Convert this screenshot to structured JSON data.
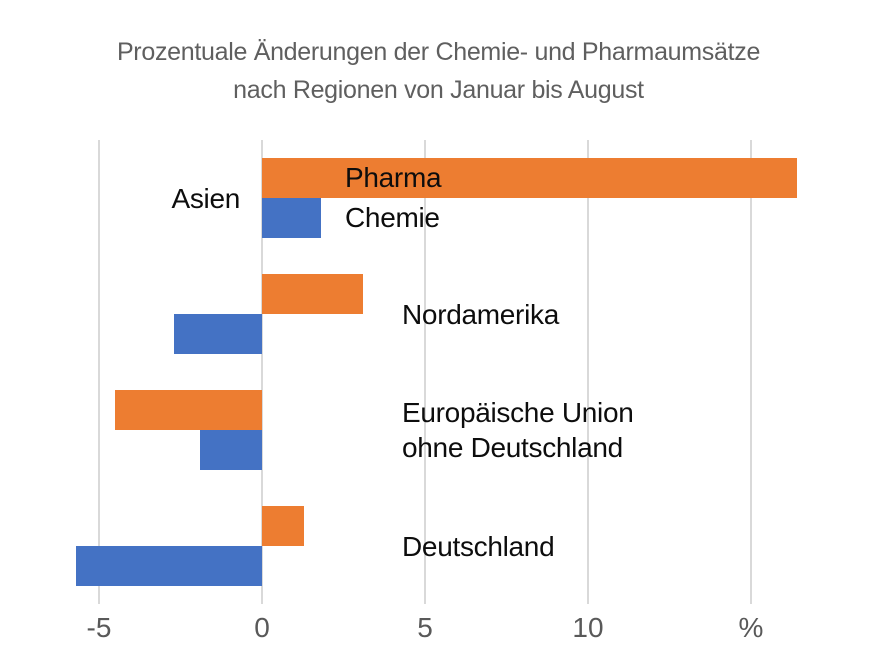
{
  "title": {
    "line1": "Prozentuale Änderungen der Chemie- und Pharmaumsätze",
    "line2": "nach Regionen von Januar bis August"
  },
  "chart_data": {
    "type": "bar",
    "orientation": "horizontal",
    "title": "Prozentuale Änderungen der Chemie- und Pharmaumsätze nach Regionen von Januar bis August",
    "unit": "%",
    "categories": [
      {
        "name": "Asien",
        "label_lines": [
          "Asien"
        ],
        "label_side": "left"
      },
      {
        "name": "Nordamerika",
        "label_lines": [
          "Nordamerika"
        ],
        "label_side": "right"
      },
      {
        "name": "Europäische Union ohne Deutschland",
        "label_lines": [
          "Europäische Union",
          "ohne Deutschland"
        ],
        "label_side": "right"
      },
      {
        "name": "Deutschland",
        "label_lines": [
          "Deutschland"
        ],
        "label_side": "right"
      }
    ],
    "series": [
      {
        "name": "Pharma",
        "color": "#ED7D31",
        "values": [
          16.4,
          3.1,
          -4.5,
          1.3
        ]
      },
      {
        "name": "Chemie",
        "color": "#4472C4",
        "values": [
          1.8,
          -2.7,
          -1.9,
          -5.7
        ]
      }
    ],
    "x_axis": {
      "ticks": [
        {
          "value": -5,
          "text": "-5"
        },
        {
          "value": 0,
          "text": "0"
        },
        {
          "value": 5,
          "text": "5"
        },
        {
          "value": 10,
          "text": "10"
        },
        {
          "value": 15,
          "text": "%"
        }
      ],
      "range_shown": [
        -6.2,
        16.9
      ],
      "grid": true
    },
    "legend": {
      "style": "inline-data-labels",
      "entries": [
        "Pharma",
        "Chemie"
      ]
    },
    "colors": {
      "pharma": "#ED7D31",
      "chemie": "#4472C4",
      "gridline": "#d9d9d9",
      "axis_text": "#595959",
      "title_text": "#5f5f5f",
      "label_text": "#0d0d0d",
      "background": "#ffffff"
    }
  }
}
